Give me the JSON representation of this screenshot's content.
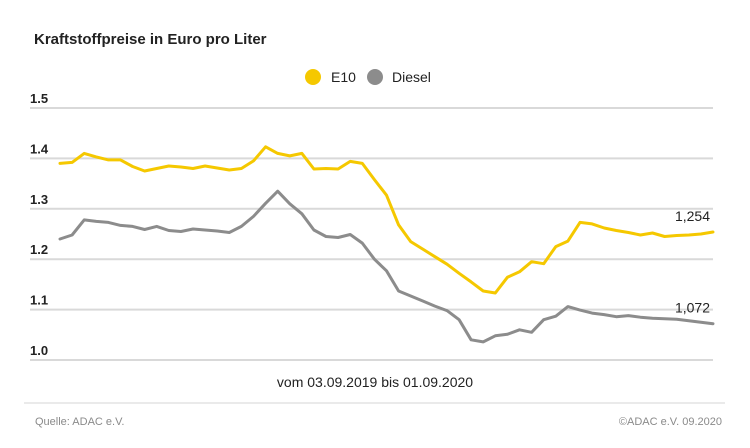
{
  "chart_data": {
    "type": "line",
    "title": "Kraftstoffpreise in Euro pro Liter",
    "subtitle": "vom 03.09.2019 bis 01.09.2020",
    "ylim": [
      1.0,
      1.5
    ],
    "yticks": [
      "1.0",
      "1.1",
      "1.2",
      "1.3",
      "1.4",
      "1.5"
    ],
    "grid": true,
    "legend": "top-center",
    "series": [
      {
        "name": "E10",
        "color": "#f5c800",
        "end_label": "1,254",
        "values": [
          1.39,
          1.392,
          1.41,
          1.403,
          1.397,
          1.397,
          1.384,
          1.375,
          1.38,
          1.385,
          1.383,
          1.38,
          1.385,
          1.381,
          1.377,
          1.38,
          1.395,
          1.423,
          1.41,
          1.405,
          1.41,
          1.379,
          1.38,
          1.379,
          1.394,
          1.39,
          1.358,
          1.327,
          1.268,
          1.235,
          1.22,
          1.205,
          1.19,
          1.172,
          1.155,
          1.137,
          1.133,
          1.164,
          1.175,
          1.195,
          1.191,
          1.225,
          1.236,
          1.273,
          1.27,
          1.262,
          1.257,
          1.253,
          1.248,
          1.252,
          1.245,
          1.247,
          1.248,
          1.25,
          1.254
        ]
      },
      {
        "name": "Diesel",
        "color": "#8c8c8c",
        "end_label": "1,072",
        "values": [
          1.24,
          1.248,
          1.278,
          1.275,
          1.273,
          1.267,
          1.265,
          1.259,
          1.265,
          1.257,
          1.255,
          1.26,
          1.258,
          1.256,
          1.253,
          1.265,
          1.285,
          1.311,
          1.335,
          1.31,
          1.29,
          1.258,
          1.245,
          1.243,
          1.249,
          1.232,
          1.2,
          1.177,
          1.137,
          1.127,
          1.117,
          1.107,
          1.098,
          1.08,
          1.04,
          1.036,
          1.048,
          1.051,
          1.06,
          1.055,
          1.08,
          1.087,
          1.106,
          1.099,
          1.093,
          1.09,
          1.086,
          1.088,
          1.085,
          1.083,
          1.082,
          1.081,
          1.078,
          1.075,
          1.072
        ]
      }
    ]
  },
  "footer": {
    "source": "Quelle: ADAC e.V.",
    "copyright": "©ADAC e.V. 09.2020"
  }
}
